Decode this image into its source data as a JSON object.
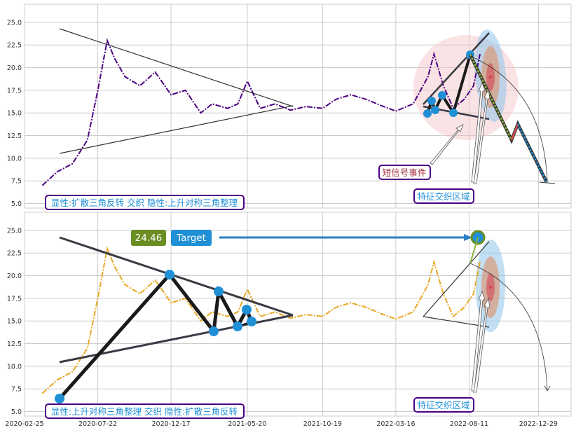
{
  "colors": {
    "series_top": "#4b0082",
    "series_bottom": "#e8a825",
    "pattern_blue": "#1f8fd6",
    "badge_border": "#4b0082",
    "badge_text": "#1f8fd6",
    "signal_text": "#a0303a",
    "value_badge": "#6b8e23",
    "grid": "#cccccc"
  },
  "chart_data": [
    {
      "type": "line",
      "panel": "top",
      "ylim": [
        4.5,
        27.0
      ],
      "yticks": [
        "5.0",
        "7.5",
        "10.0",
        "12.5",
        "15.0",
        "17.5",
        "20.0",
        "22.5",
        "25.0"
      ],
      "x_range": [
        "2020-02-25",
        "2023-03-05"
      ],
      "series": [
        {
          "x": [
            "2020-04-01",
            "2020-05-01",
            "2020-06-01",
            "2020-07-01",
            "2020-07-22",
            "2020-08-10",
            "2020-08-25",
            "2020-09-15",
            "2020-10-15",
            "2020-11-15",
            "2020-12-17",
            "2021-01-15",
            "2021-02-15",
            "2021-03-10",
            "2021-04-10",
            "2021-05-01",
            "2021-05-20",
            "2021-06-15",
            "2021-07-15",
            "2021-08-15",
            "2021-09-15",
            "2021-10-19",
            "2021-11-15",
            "2021-12-15",
            "2022-01-15",
            "2022-02-15",
            "2022-03-16",
            "2022-04-20",
            "2022-05-20",
            "2022-06-01",
            "2022-06-20",
            "2022-07-10",
            "2022-08-01",
            "2022-08-20",
            "2022-09-02"
          ],
          "values": [
            7.0,
            8.5,
            9.4,
            12.0,
            17.5,
            23.0,
            21.0,
            19.0,
            18.0,
            19.5,
            17.0,
            17.5,
            15.0,
            16.0,
            15.5,
            16.0,
            18.5,
            15.5,
            16.0,
            15.3,
            15.7,
            15.5,
            16.5,
            17.0,
            16.5,
            15.8,
            15.2,
            16.0,
            19.0,
            21.5,
            18.0,
            15.5,
            16.5,
            18.0,
            21.5
          ]
        }
      ],
      "annotations": {
        "signal_label": "短信号事件",
        "zone_label": "特征交织区域",
        "pattern_label": "显性:扩散三角反转 交织 隐性:上升对称三角整理"
      }
    },
    {
      "type": "line",
      "panel": "bottom",
      "ylim": [
        4.5,
        27.0
      ],
      "yticks": [
        "5.0",
        "7.5",
        "10.0",
        "12.5",
        "15.0",
        "17.5",
        "20.0",
        "22.5",
        "25.0"
      ],
      "xticks": [
        "2020-02-25",
        "2020-07-22",
        "2020-12-17",
        "2021-05-20",
        "2021-10-19",
        "2022-03-16",
        "2022-08-11",
        "2022-12-29"
      ],
      "x_range": [
        "2020-02-25",
        "2023-03-05"
      ],
      "series": [
        {
          "x": [
            "2020-04-01",
            "2020-05-01",
            "2020-06-01",
            "2020-07-01",
            "2020-07-22",
            "2020-08-10",
            "2020-08-25",
            "2020-09-15",
            "2020-10-15",
            "2020-11-15",
            "2020-12-17",
            "2021-01-15",
            "2021-02-15",
            "2021-03-10",
            "2021-04-10",
            "2021-05-01",
            "2021-05-20",
            "2021-06-15",
            "2021-07-15",
            "2021-08-15",
            "2021-09-15",
            "2021-10-19",
            "2021-11-15",
            "2021-12-15",
            "2022-01-15",
            "2022-02-15",
            "2022-03-16",
            "2022-04-20",
            "2022-05-20",
            "2022-06-01",
            "2022-06-20",
            "2022-07-10",
            "2022-08-01",
            "2022-08-20",
            "2022-09-02"
          ],
          "values": [
            7.0,
            8.5,
            9.4,
            12.0,
            17.5,
            23.0,
            21.0,
            19.0,
            18.0,
            19.5,
            17.0,
            17.5,
            15.0,
            16.0,
            15.5,
            16.0,
            18.5,
            15.5,
            16.0,
            15.3,
            15.7,
            15.5,
            16.5,
            17.0,
            16.5,
            15.8,
            15.2,
            16.0,
            19.0,
            21.5,
            18.0,
            15.5,
            16.5,
            18.0,
            21.5
          ]
        }
      ],
      "annotations": {
        "value_badge": "24.46",
        "target_label": "Target",
        "zone_label": "特征交织区域",
        "pattern_label": "显性:上升对称三角整理 交织 隐性:扩散三角反转"
      }
    }
  ]
}
